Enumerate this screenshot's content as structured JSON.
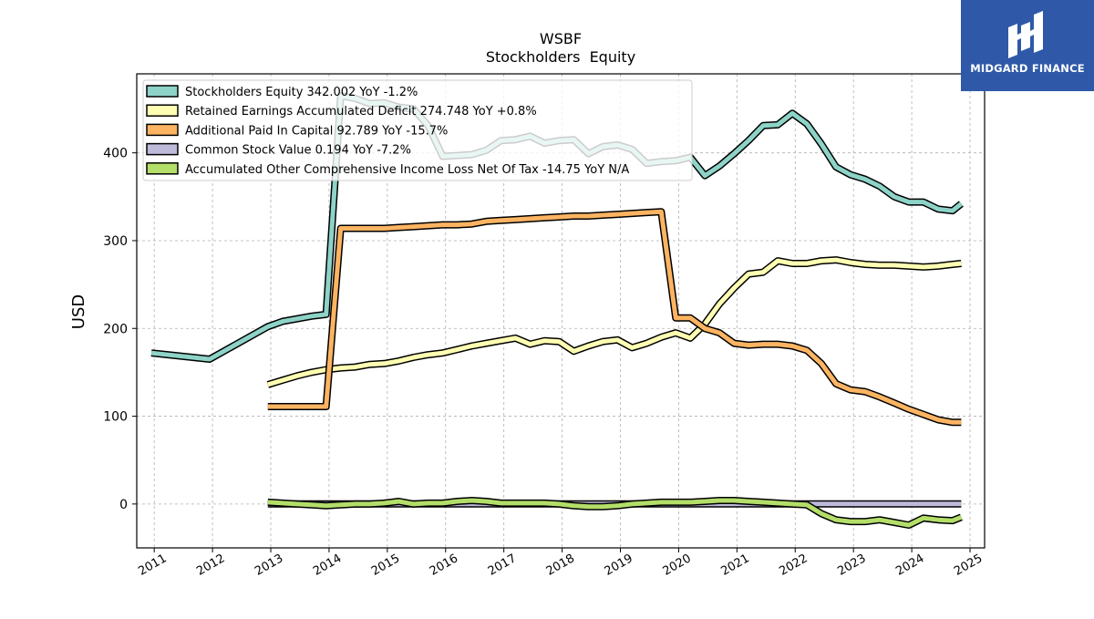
{
  "brand": {
    "name": "MIDGARD FINANCE",
    "color": "#2f59a8"
  },
  "chart_data": {
    "type": "line",
    "title": "WSBF",
    "subtitle": "Stockholders  Equity",
    "xlabel": "",
    "ylabel": "USD",
    "xlim": [
      2010.7,
      2025.25
    ],
    "ylim": [
      -50,
      490
    ],
    "x_ticks": [
      "2011",
      "2012",
      "2013",
      "2014",
      "2015",
      "2016",
      "2017",
      "2018",
      "2019",
      "2020",
      "2021",
      "2022",
      "2023",
      "2024",
      "2025"
    ],
    "y_ticks": [
      0,
      100,
      200,
      300,
      400
    ],
    "grid": true,
    "legend_position": "top-left",
    "series": [
      {
        "name": "Stockholders Equity  342.002 YoY -1.2%",
        "color": "#8dd3c7",
        "x": [
          2010.95,
          2011.95,
          2012.95,
          2013.2,
          2013.45,
          2013.7,
          2013.95,
          2014.2,
          2014.45,
          2014.7,
          2014.95,
          2015.2,
          2015.45,
          2015.7,
          2015.95,
          2016.2,
          2016.45,
          2016.7,
          2016.95,
          2017.2,
          2017.45,
          2017.7,
          2017.95,
          2018.2,
          2018.45,
          2018.7,
          2018.95,
          2019.2,
          2019.45,
          2019.7,
          2019.95,
          2020.2,
          2020.45,
          2020.7,
          2020.95,
          2021.2,
          2021.45,
          2021.7,
          2021.95,
          2022.2,
          2022.45,
          2022.7,
          2022.95,
          2023.2,
          2023.45,
          2023.7,
          2023.95,
          2024.2,
          2024.45,
          2024.7,
          2024.85
        ],
        "values": [
          172,
          165,
          202,
          208,
          211,
          214,
          216,
          465,
          462,
          456,
          457,
          452,
          450,
          431,
          396,
          397,
          398,
          403,
          414,
          415,
          419,
          411,
          414,
          415,
          399,
          407,
          409,
          404,
          388,
          390,
          391,
          395,
          374,
          385,
          399,
          414,
          431,
          432,
          445,
          433,
          410,
          384,
          375,
          370,
          362,
          350,
          344,
          344,
          336,
          334,
          342
        ]
      },
      {
        "name": "Retained Earnings Accumulated Deficit  274.748 YoY +0.8%",
        "color": "#ffffb3",
        "x": [
          2012.95,
          2013.2,
          2013.45,
          2013.7,
          2013.95,
          2014.2,
          2014.45,
          2014.7,
          2014.95,
          2015.2,
          2015.45,
          2015.7,
          2015.95,
          2016.2,
          2016.45,
          2016.7,
          2016.95,
          2017.2,
          2017.45,
          2017.7,
          2017.95,
          2018.2,
          2018.45,
          2018.7,
          2018.95,
          2019.2,
          2019.45,
          2019.7,
          2019.95,
          2020.2,
          2020.45,
          2020.7,
          2020.95,
          2021.2,
          2021.45,
          2021.7,
          2021.95,
          2022.2,
          2022.45,
          2022.7,
          2022.95,
          2023.2,
          2023.45,
          2023.7,
          2023.95,
          2024.2,
          2024.45,
          2024.7,
          2024.85
        ],
        "values": [
          136,
          141,
          146,
          150,
          153,
          155,
          156,
          159,
          160,
          163,
          167,
          170,
          172,
          176,
          180,
          183,
          186,
          189,
          182,
          186,
          185,
          174,
          180,
          185,
          187,
          178,
          183,
          190,
          195,
          189,
          205,
          228,
          246,
          262,
          264,
          277,
          274,
          274,
          277,
          278,
          275,
          273,
          272,
          272,
          271,
          270,
          271,
          273,
          274
        ]
      },
      {
        "name": "Additional Paid In Capital  92.789 YoY -15.7%",
        "color": "#fdb462",
        "x": [
          2012.95,
          2013.2,
          2013.45,
          2013.7,
          2013.95,
          2014.2,
          2014.45,
          2014.7,
          2014.95,
          2015.2,
          2015.45,
          2015.7,
          2015.95,
          2016.2,
          2016.45,
          2016.7,
          2016.95,
          2017.2,
          2017.45,
          2017.7,
          2017.95,
          2018.2,
          2018.45,
          2018.7,
          2018.95,
          2019.2,
          2019.45,
          2019.7,
          2019.95,
          2020.2,
          2020.45,
          2020.7,
          2020.95,
          2021.2,
          2021.45,
          2021.7,
          2021.95,
          2022.2,
          2022.45,
          2022.7,
          2022.95,
          2023.2,
          2023.45,
          2023.7,
          2023.95,
          2024.2,
          2024.45,
          2024.7,
          2024.85
        ],
        "values": [
          111,
          111,
          111,
          111,
          111,
          314,
          314,
          314,
          314,
          315,
          316,
          317,
          318,
          318,
          319,
          322,
          323,
          324,
          325,
          326,
          327,
          328,
          328,
          329,
          330,
          331,
          332,
          333,
          212,
          212,
          200,
          195,
          183,
          181,
          182,
          182,
          180,
          175,
          160,
          137,
          130,
          128,
          122,
          115,
          108,
          102,
          96,
          93,
          93
        ]
      },
      {
        "name": "Common Stock Value  0.194 YoY -7.2%",
        "color": "#bebada",
        "x": [
          2012.95,
          2013.95,
          2014.95,
          2015.95,
          2016.95,
          2017.95,
          2018.95,
          2019.95,
          2020.95,
          2021.95,
          2022.95,
          2023.95,
          2024.85
        ],
        "values": [
          0.2,
          0.2,
          0.2,
          0.2,
          0.2,
          0.2,
          0.2,
          0.2,
          0.2,
          0.2,
          0.2,
          0.2,
          0.19
        ]
      },
      {
        "name": "Accumulated Other Comprehensive Income Loss Net Of Tax  -14.75 YoY N/A",
        "color": "#b3de69",
        "x": [
          2012.95,
          2013.2,
          2013.45,
          2013.7,
          2013.95,
          2014.2,
          2014.45,
          2014.7,
          2014.95,
          2015.2,
          2015.45,
          2015.7,
          2015.95,
          2016.2,
          2016.45,
          2016.7,
          2016.95,
          2017.2,
          2017.45,
          2017.7,
          2017.95,
          2018.2,
          2018.45,
          2018.7,
          2018.95,
          2019.2,
          2019.45,
          2019.7,
          2019.95,
          2020.2,
          2020.45,
          2020.7,
          2020.95,
          2021.2,
          2021.45,
          2021.7,
          2021.95,
          2022.2,
          2022.45,
          2022.7,
          2022.95,
          2023.2,
          2023.45,
          2023.7,
          2023.95,
          2024.2,
          2024.45,
          2024.7,
          2024.85
        ],
        "values": [
          2,
          1,
          0,
          -1,
          -2,
          -1,
          0,
          0,
          1,
          3,
          0,
          1,
          1,
          3,
          4,
          3,
          1,
          1,
          1,
          1,
          0,
          -2,
          -3,
          -3,
          -2,
          0,
          1,
          2,
          2,
          2,
          3,
          4,
          4,
          3,
          2,
          1,
          0,
          -1,
          -11,
          -18,
          -20,
          -20,
          -18,
          -21,
          -24,
          -16,
          -18,
          -19,
          -15
        ]
      }
    ]
  }
}
